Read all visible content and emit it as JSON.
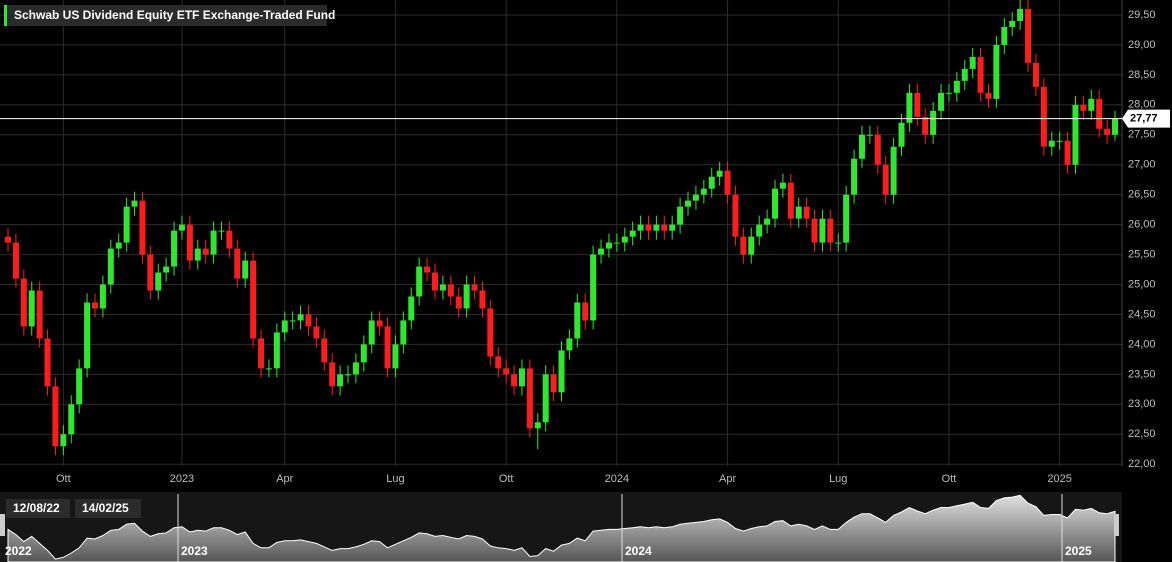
{
  "chart_data": {
    "type": "candlestick",
    "title": "Schwab US Dividend Equity ETF Exchange-Traded Fund",
    "up_color": "#2ee82e",
    "down_color": "#ff1c1c",
    "grid": true,
    "categories": [
      null,
      null,
      null,
      null,
      null,
      null,
      null,
      "Ott",
      null,
      null,
      null,
      null,
      null,
      null,
      null,
      null,
      null,
      null,
      null,
      null,
      null,
      null,
      "2023",
      null,
      null,
      null,
      null,
      null,
      null,
      null,
      null,
      null,
      null,
      null,
      null,
      "Apr",
      null,
      null,
      null,
      null,
      null,
      null,
      null,
      null,
      null,
      null,
      null,
      null,
      null,
      "Lug",
      null,
      null,
      null,
      null,
      null,
      null,
      null,
      null,
      null,
      null,
      null,
      null,
      null,
      "Ott",
      null,
      null,
      null,
      null,
      null,
      null,
      null,
      null,
      null,
      null,
      null,
      null,
      null,
      "2024",
      null,
      null,
      null,
      null,
      null,
      null,
      null,
      null,
      null,
      null,
      null,
      null,
      null,
      "Apr",
      null,
      null,
      null,
      null,
      null,
      null,
      null,
      null,
      null,
      null,
      null,
      null,
      null,
      "Lug",
      null,
      null,
      null,
      null,
      null,
      null,
      null,
      null,
      null,
      null,
      null,
      null,
      null,
      "Ott",
      null,
      null,
      null,
      null,
      null,
      null,
      null,
      null,
      null,
      null,
      null,
      null,
      null,
      "2025",
      null,
      null,
      null,
      null,
      null,
      null,
      null
    ],
    "open": [
      25.8,
      25.7,
      25.1,
      24.3,
      24.9,
      24.1,
      23.3,
      22.3,
      22.5,
      23.0,
      23.6,
      24.7,
      24.6,
      25.0,
      25.6,
      25.7,
      26.3,
      26.4,
      25.5,
      24.9,
      25.2,
      25.3,
      25.9,
      26.0,
      25.4,
      25.6,
      25.5,
      25.9,
      25.9,
      25.6,
      25.1,
      25.4,
      24.1,
      23.6,
      23.6,
      24.2,
      24.4,
      24.4,
      24.5,
      24.3,
      24.1,
      23.7,
      23.3,
      23.5,
      23.5,
      23.7,
      24.0,
      24.4,
      24.3,
      23.6,
      24.0,
      24.4,
      24.8,
      25.3,
      25.2,
      24.9,
      25.0,
      24.8,
      24.6,
      25.0,
      24.9,
      24.6,
      23.8,
      23.6,
      23.5,
      23.3,
      23.6,
      22.6,
      22.7,
      23.5,
      23.2,
      23.9,
      24.1,
      24.7,
      24.4,
      25.5,
      25.6,
      25.7,
      25.7,
      25.8,
      25.9,
      26.0,
      25.9,
      26.0,
      25.9,
      26.0,
      26.3,
      26.4,
      26.5,
      26.6,
      26.8,
      26.9,
      26.5,
      25.8,
      25.5,
      25.8,
      26.0,
      26.1,
      26.6,
      26.7,
      26.1,
      26.3,
      26.1,
      25.7,
      26.1,
      25.7,
      25.7,
      26.5,
      27.1,
      27.5,
      27.5,
      27.0,
      26.5,
      27.3,
      27.7,
      28.2,
      27.8,
      27.5,
      27.9,
      28.2,
      28.2,
      28.4,
      28.6,
      28.8,
      28.2,
      28.1,
      29.0,
      29.3,
      29.4,
      29.6,
      28.7,
      28.3,
      27.3,
      27.4,
      27.4,
      27.0,
      28.0,
      27.9,
      28.1,
      27.6,
      27.5
    ],
    "high": [
      25.95,
      25.85,
      25.25,
      25.05,
      25.05,
      24.25,
      23.45,
      22.65,
      23.15,
      23.75,
      24.85,
      24.85,
      25.15,
      25.75,
      25.85,
      26.45,
      26.55,
      26.55,
      25.65,
      25.35,
      25.45,
      26.05,
      26.15,
      26.15,
      25.75,
      25.75,
      26.05,
      26.05,
      26.05,
      25.75,
      25.55,
      25.55,
      24.25,
      23.75,
      24.35,
      24.55,
      24.55,
      24.65,
      24.65,
      24.45,
      24.25,
      23.85,
      23.65,
      23.65,
      23.85,
      24.15,
      24.55,
      24.55,
      24.45,
      24.15,
      24.55,
      24.95,
      25.45,
      25.45,
      25.35,
      25.15,
      25.15,
      24.95,
      25.15,
      25.15,
      25.05,
      24.75,
      23.95,
      23.75,
      23.65,
      23.75,
      23.75,
      22.85,
      23.65,
      23.65,
      24.05,
      24.25,
      24.85,
      24.85,
      25.65,
      25.75,
      25.85,
      25.85,
      25.95,
      26.05,
      26.15,
      26.15,
      26.15,
      26.15,
      26.15,
      26.45,
      26.55,
      26.65,
      26.75,
      26.95,
      27.05,
      27.05,
      26.65,
      25.95,
      25.95,
      26.15,
      26.25,
      26.75,
      26.85,
      26.85,
      26.45,
      26.45,
      26.25,
      26.25,
      26.25,
      25.85,
      26.65,
      27.25,
      27.65,
      27.65,
      27.65,
      27.15,
      27.45,
      27.85,
      28.35,
      28.35,
      27.95,
      28.05,
      28.35,
      28.35,
      28.55,
      28.75,
      28.95,
      28.95,
      28.35,
      29.15,
      29.45,
      29.55,
      29.75,
      29.75,
      28.85,
      28.45,
      27.55,
      27.55,
      27.55,
      28.15,
      28.15,
      28.25,
      28.25,
      27.75,
      27.9
    ],
    "low": [
      25.55,
      24.95,
      24.15,
      24.15,
      23.95,
      23.15,
      22.15,
      22.15,
      22.35,
      22.85,
      23.45,
      24.45,
      24.45,
      24.85,
      25.45,
      25.55,
      26.15,
      25.35,
      24.75,
      24.75,
      25.05,
      25.15,
      25.75,
      25.25,
      25.25,
      25.35,
      25.35,
      25.75,
      25.45,
      24.95,
      24.95,
      23.95,
      23.45,
      23.45,
      23.45,
      24.05,
      24.25,
      24.25,
      24.15,
      23.95,
      23.55,
      23.15,
      23.15,
      23.35,
      23.35,
      23.55,
      23.85,
      24.15,
      23.45,
      23.45,
      23.85,
      24.25,
      24.65,
      25.05,
      24.75,
      24.75,
      24.65,
      24.45,
      24.45,
      24.75,
      24.45,
      23.65,
      23.45,
      23.35,
      23.15,
      23.15,
      22.45,
      22.25,
      22.55,
      23.05,
      23.05,
      23.75,
      23.95,
      24.25,
      24.25,
      25.35,
      25.45,
      25.55,
      25.55,
      25.65,
      25.75,
      25.75,
      25.75,
      25.75,
      25.75,
      25.85,
      26.15,
      26.25,
      26.35,
      26.45,
      26.65,
      26.35,
      25.65,
      25.35,
      25.35,
      25.65,
      25.85,
      25.95,
      26.45,
      25.95,
      25.95,
      25.95,
      25.55,
      25.55,
      25.55,
      25.55,
      25.55,
      26.35,
      26.95,
      27.35,
      26.85,
      26.35,
      26.35,
      27.15,
      27.55,
      27.65,
      27.35,
      27.35,
      27.75,
      28.05,
      28.05,
      28.25,
      28.45,
      28.05,
      27.95,
      27.95,
      28.85,
      29.15,
      29.25,
      28.55,
      28.15,
      27.15,
      27.15,
      27.25,
      26.85,
      26.85,
      27.75,
      27.75,
      27.45,
      27.35,
      27.4
    ],
    "close": [
      25.7,
      25.1,
      24.3,
      24.9,
      24.1,
      23.3,
      22.3,
      22.5,
      23.0,
      23.6,
      24.7,
      24.6,
      25.0,
      25.6,
      25.7,
      26.3,
      26.4,
      25.5,
      24.9,
      25.2,
      25.3,
      25.9,
      26.0,
      25.4,
      25.6,
      25.5,
      25.9,
      25.9,
      25.6,
      25.1,
      25.4,
      24.1,
      23.6,
      23.6,
      24.2,
      24.4,
      24.4,
      24.5,
      24.3,
      24.1,
      23.7,
      23.3,
      23.5,
      23.5,
      23.7,
      24.0,
      24.4,
      24.3,
      23.6,
      24.0,
      24.4,
      24.8,
      25.3,
      25.2,
      24.9,
      25.0,
      24.8,
      24.6,
      25.0,
      24.9,
      24.6,
      23.8,
      23.6,
      23.5,
      23.3,
      23.6,
      22.6,
      22.7,
      23.5,
      23.2,
      23.9,
      24.1,
      24.7,
      24.4,
      25.5,
      25.6,
      25.7,
      25.7,
      25.8,
      25.9,
      26.0,
      25.9,
      26.0,
      25.9,
      26.0,
      26.3,
      26.4,
      26.5,
      26.6,
      26.8,
      26.9,
      26.5,
      25.8,
      25.5,
      25.8,
      26.0,
      26.1,
      26.6,
      26.7,
      26.1,
      26.3,
      26.1,
      25.7,
      26.1,
      25.7,
      25.7,
      26.5,
      27.1,
      27.5,
      27.5,
      27.0,
      26.5,
      27.3,
      27.7,
      28.2,
      27.8,
      27.5,
      27.9,
      28.2,
      28.2,
      28.4,
      28.6,
      28.8,
      28.2,
      28.1,
      29.0,
      29.3,
      29.4,
      29.6,
      28.7,
      28.3,
      27.3,
      27.4,
      27.4,
      27.0,
      28.0,
      27.9,
      28.1,
      27.6,
      27.5,
      27.77
    ],
    "last_price": {
      "value": 27.77,
      "label": "27,77"
    },
    "ylim": [
      21.97,
      29.75
    ],
    "yticks": [
      {
        "value": 22,
        "label": "22,00"
      },
      {
        "value": 22.5,
        "label": "22,50"
      },
      {
        "value": 23,
        "label": "23,00"
      },
      {
        "value": 23.5,
        "label": "23,50"
      },
      {
        "value": 24,
        "label": "24,00"
      },
      {
        "value": 24.5,
        "label": "24,50"
      },
      {
        "value": 25,
        "label": "25,00"
      },
      {
        "value": 25.5,
        "label": "25,50"
      },
      {
        "value": 26,
        "label": "26,00"
      },
      {
        "value": 26.5,
        "label": "26,50"
      },
      {
        "value": 27,
        "label": "27,00"
      },
      {
        "value": 27.5,
        "label": "27,50"
      },
      {
        "value": 28,
        "label": "28,00"
      },
      {
        "value": 28.5,
        "label": "28,50"
      },
      {
        "value": 29,
        "label": "29,00"
      },
      {
        "value": 29.5,
        "label": "29,50"
      }
    ],
    "navigator": {
      "start_label": "12/08/22",
      "end_label": "14/02/25",
      "years": [
        "2022",
        "2023",
        "2024",
        "2025"
      ]
    }
  }
}
